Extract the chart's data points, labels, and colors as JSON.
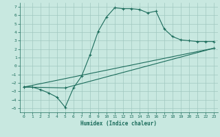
{
  "xlabel": "Humidex (Indice chaleur)",
  "bg_color": "#c8e8e0",
  "grid_color": "#a0c8c0",
  "line_color": "#1a6b5a",
  "ylim": [
    -5.5,
    7.5
  ],
  "xlim": [
    -0.5,
    23.5
  ],
  "line1_x": [
    0,
    1,
    2,
    3,
    4,
    5,
    6,
    7,
    8,
    9,
    10,
    11,
    12,
    13,
    14,
    15,
    16,
    17,
    18,
    19,
    20,
    21,
    22,
    23
  ],
  "line1_y": [
    -2.5,
    -2.5,
    -2.8,
    -3.2,
    -3.7,
    -4.9,
    -2.6,
    -1.2,
    1.3,
    4.1,
    5.8,
    6.9,
    6.8,
    6.8,
    6.7,
    6.3,
    6.5,
    4.4,
    3.5,
    3.1,
    3.0,
    2.9,
    2.9,
    2.9
  ],
  "line2_x": [
    0,
    5,
    23
  ],
  "line2_y": [
    -2.5,
    -2.6,
    2.1
  ],
  "line3_x": [
    0,
    23
  ],
  "line3_y": [
    -2.5,
    2.1
  ],
  "yticks": [
    -5,
    -4,
    -3,
    -2,
    -1,
    0,
    1,
    2,
    3,
    4,
    5,
    6,
    7
  ],
  "xticks": [
    0,
    1,
    2,
    3,
    4,
    5,
    6,
    7,
    8,
    9,
    10,
    11,
    12,
    13,
    14,
    15,
    16,
    17,
    18,
    19,
    20,
    21,
    22,
    23
  ]
}
